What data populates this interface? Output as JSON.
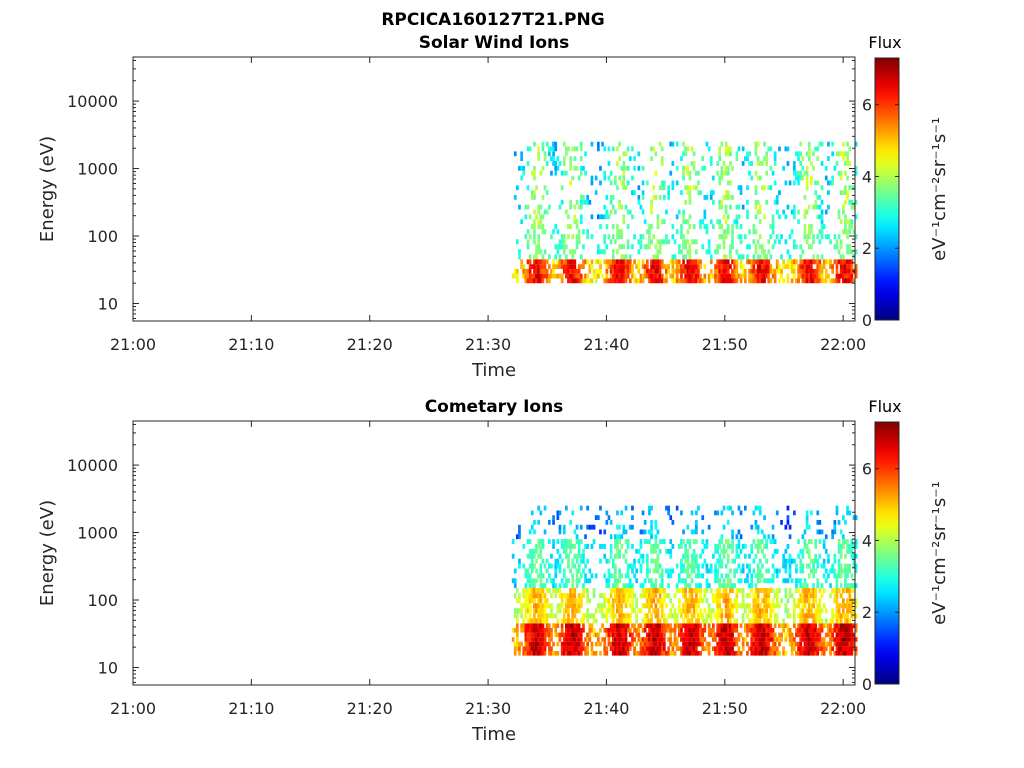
{
  "page_title": "RPCICA160127T21.PNG",
  "chart_data": [
    {
      "type": "heatmap",
      "title": "Solar Wind Ions",
      "xlabel": "Time",
      "ylabel": "Energy (eV)",
      "x_tick_labels": [
        "21:00",
        "21:10",
        "21:20",
        "21:30",
        "21:40",
        "21:50",
        "22:00"
      ],
      "x_range": [
        "21:00",
        "22:01"
      ],
      "y_scale": "log",
      "y_range": [
        5.5,
        45000
      ],
      "y_ticks": [
        10,
        100,
        1000,
        10000
      ],
      "y_tick_labels": [
        "10",
        "100",
        "1000",
        "10000"
      ],
      "data_start": "21:32",
      "data_end": "22:01",
      "colorbar": {
        "label": "Flux",
        "units_label": "eV⁻¹cm⁻²sr⁻¹s⁻¹",
        "range": [
          0,
          7.3
        ],
        "ticks": [
          0,
          2,
          4,
          6
        ],
        "tick_labels": [
          "0",
          "2",
          "4",
          "6"
        ],
        "colormap": "jet"
      },
      "bands": [
        {
          "energy_min": 20,
          "energy_max": 45,
          "flux_min": 4.0,
          "flux_max": 7.0,
          "density": 0.85
        },
        {
          "energy_min": 45,
          "energy_max": 150,
          "flux_min": 2.5,
          "flux_max": 4.0,
          "density": 0.3
        },
        {
          "energy_min": 150,
          "energy_max": 2500,
          "flux_min": 1.5,
          "flux_max": 4.5,
          "density": 0.22
        }
      ],
      "pulse_peaks": [
        "21:34",
        "21:37",
        "21:41",
        "21:44",
        "21:47",
        "21:50",
        "21:53",
        "21:57",
        "22:00"
      ]
    },
    {
      "type": "heatmap",
      "title": "Cometary Ions",
      "xlabel": "Time",
      "ylabel": "Energy (eV)",
      "x_tick_labels": [
        "21:00",
        "21:10",
        "21:20",
        "21:30",
        "21:40",
        "21:50",
        "22:00"
      ],
      "x_range": [
        "21:00",
        "22:01"
      ],
      "y_scale": "log",
      "y_range": [
        5.5,
        45000
      ],
      "y_ticks": [
        10,
        100,
        1000,
        10000
      ],
      "y_tick_labels": [
        "10",
        "100",
        "1000",
        "10000"
      ],
      "data_start": "21:32",
      "data_end": "22:01",
      "colorbar": {
        "label": "Flux",
        "units_label": "eV⁻¹cm⁻²sr⁻¹s⁻¹",
        "range": [
          0,
          7.3
        ],
        "ticks": [
          0,
          2,
          4,
          6
        ],
        "tick_labels": [
          "0",
          "2",
          "4",
          "6"
        ],
        "colormap": "jet"
      },
      "bands": [
        {
          "energy_min": 15,
          "energy_max": 45,
          "flux_min": 4.5,
          "flux_max": 7.3,
          "density": 0.92
        },
        {
          "energy_min": 45,
          "energy_max": 150,
          "flux_min": 3.5,
          "flux_max": 5.5,
          "density": 0.7
        },
        {
          "energy_min": 150,
          "energy_max": 800,
          "flux_min": 2.0,
          "flux_max": 3.8,
          "density": 0.45
        },
        {
          "energy_min": 800,
          "energy_max": 2500,
          "flux_min": 1.0,
          "flux_max": 3.0,
          "density": 0.18
        }
      ],
      "pulse_peaks": [
        "21:34",
        "21:37",
        "21:41",
        "21:44",
        "21:47",
        "21:50",
        "21:53",
        "21:57",
        "22:00"
      ]
    }
  ]
}
